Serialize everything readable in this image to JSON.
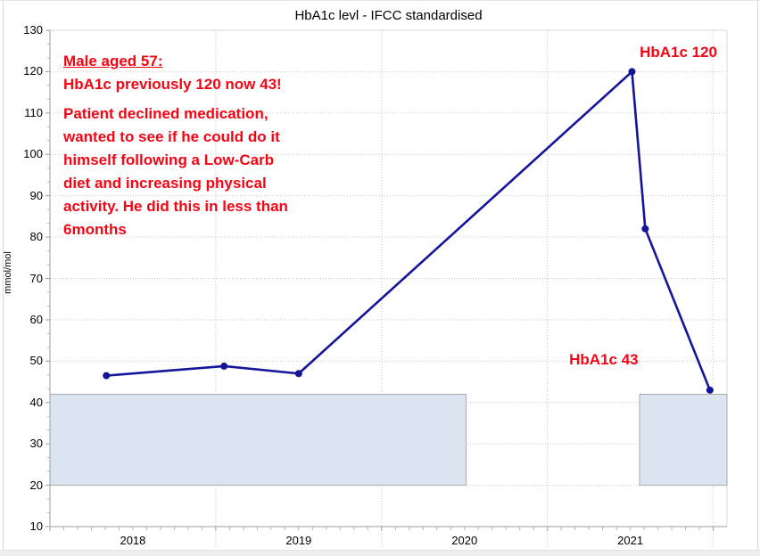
{
  "colors": {
    "line": "#15159b",
    "annotation_red": "#f50514",
    "band_fill": "#dde4f1",
    "band_border": "#a9a9a9",
    "grid": "#c6c6c6",
    "axis": "#9e9e9e",
    "frame": "#d9d9d9",
    "tick_minor": "#b3b3b3"
  },
  "chart_data": {
    "type": "line",
    "title": "HbA1c levl - IFCC standardised",
    "ylabel": "mmol/mol",
    "ylim": [
      10,
      130
    ],
    "y_major_step": 10,
    "xlim": [
      2018,
      2022.083
    ],
    "x_tick_labels": [
      {
        "label": "2018",
        "center": 2018.5
      },
      {
        "label": "2019",
        "center": 2019.5
      },
      {
        "label": "2020",
        "center": 2020.5
      },
      {
        "label": "2021",
        "center": 2021.5
      }
    ],
    "x_year_boundaries": [
      2019,
      2020,
      2021,
      2022
    ],
    "grid": {
      "horizontal_dotted": true,
      "vertical_dotted": true
    },
    "legend": "none",
    "series": [
      {
        "name": "HbA1c",
        "points": [
          {
            "x": 2018.34,
            "y": 46.5
          },
          {
            "x": 2019.05,
            "y": 48.8
          },
          {
            "x": 2019.5,
            "y": 47
          },
          {
            "x": 2021.51,
            "y": 120
          },
          {
            "x": 2021.59,
            "y": 82
          },
          {
            "x": 2021.98,
            "y": 43
          }
        ]
      }
    ],
    "reference_bands": [
      {
        "x0": 2018.0,
        "x1": 2020.51,
        "y0": 20,
        "y1": 42
      },
      {
        "x0": 2021.556,
        "x1": 2022.083,
        "y0": 20,
        "y1": 42
      }
    ],
    "point_labels": [
      {
        "text": "HbA1c 120",
        "x": 2021.79,
        "y": 124.6
      },
      {
        "text": "HbA1c 43",
        "x": 2021.34,
        "y": 50.2
      }
    ]
  },
  "annotation": {
    "heading": "Male aged 57:",
    "subheading": "HbA1c previously 120 now 43!",
    "body_lines": [
      "Patient declined medication,",
      "wanted to see if he could do it",
      "himself following a Low-Carb",
      "diet and increasing physical",
      "activity. He did this in less than",
      "6months"
    ]
  }
}
